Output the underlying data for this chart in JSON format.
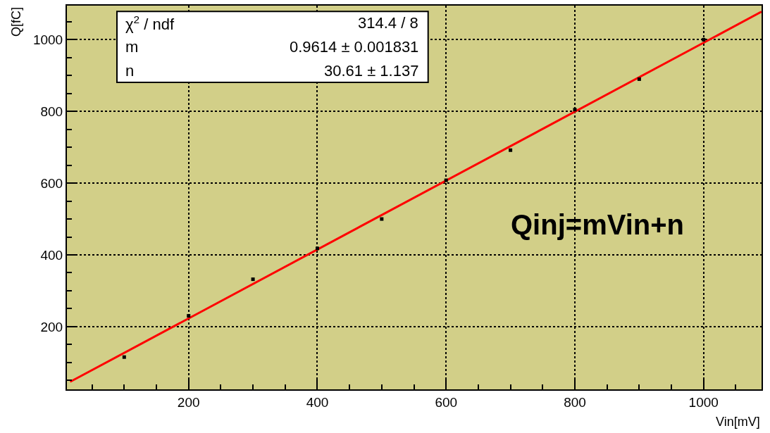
{
  "chart_data": {
    "type": "scatter",
    "xlabel": "Vin[mV]",
    "ylabel": "Q[fC]",
    "x": [
      100,
      200,
      300,
      400,
      500,
      600,
      700,
      800,
      900,
      1000
    ],
    "series": [
      {
        "color": "#000000",
        "values": [
          115,
          230,
          332,
          418,
          500,
          608,
          692,
          805,
          890,
          1000
        ]
      },
      {
        "type": "line",
        "marker": "none",
        "color": "#ff0000",
        "x": [
          16,
          1090
        ],
        "values": [
          46,
          1078
        ]
      }
    ],
    "xlim": [
      11,
      1090
    ],
    "ylim": [
      25,
      1095
    ],
    "xticks": [
      200,
      400,
      600,
      800,
      1000
    ],
    "yticks": [
      200,
      400,
      600,
      800,
      1000
    ],
    "grid": true,
    "marker": "square",
    "line_style": "solid",
    "annotations": [
      "χ$^{2}$ / ndf",
      "314.4 / 8",
      "m",
      "0.9614 ± 0.001831",
      "n",
      "30.61 ± 1.137",
      "Qinj=mVin+n"
    ]
  }
}
